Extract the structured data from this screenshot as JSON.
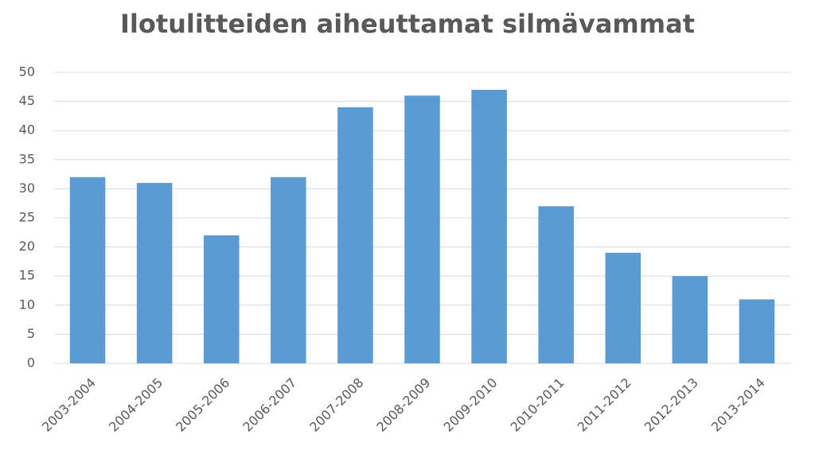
{
  "chart_data": {
    "type": "bar",
    "title": "Ilotulitteiden aiheuttamat silmävammat",
    "categories": [
      "2003-2004",
      "2004-2005",
      "2005-2006",
      "2006-2007",
      "2007-2008",
      "2008-2009",
      "2009-2010",
      "2010-2011",
      "2011-2012",
      "2012-2013",
      "2013-2014"
    ],
    "values": [
      32,
      31,
      22,
      32,
      44,
      46,
      47,
      27,
      19,
      15,
      11
    ],
    "color": "#5b9bd5",
    "ylim": [
      0,
      50
    ],
    "yticks": [
      0,
      5,
      10,
      15,
      20,
      25,
      30,
      35,
      40,
      45,
      50
    ],
    "grid": true
  }
}
